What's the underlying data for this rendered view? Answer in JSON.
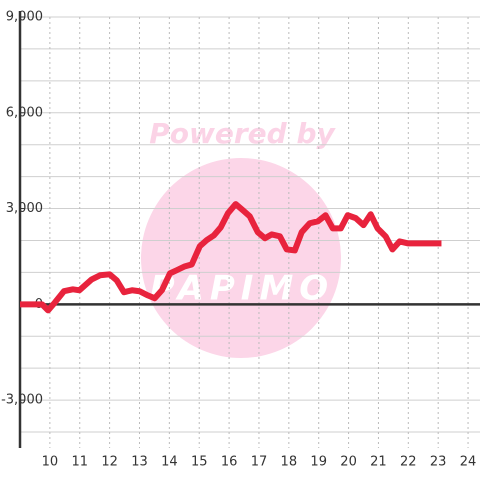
{
  "chart_data": {
    "type": "line",
    "watermark": "Powered by",
    "watermark_logo": "PAPIMO",
    "x": [
      9.0,
      9.74,
      9.94,
      10.17,
      10.47,
      10.77,
      10.99,
      11.4,
      11.68,
      12.0,
      12.24,
      12.48,
      12.75,
      13.0,
      13.28,
      13.51,
      13.75,
      14.02,
      14.25,
      14.52,
      14.75,
      15.02,
      15.25,
      15.49,
      15.72,
      15.96,
      16.22,
      16.46,
      16.69,
      16.96,
      17.2,
      17.43,
      17.7,
      17.93,
      18.2,
      18.43,
      18.7,
      18.97,
      19.23,
      19.47,
      19.74,
      19.97,
      20.24,
      20.5,
      20.74,
      20.97,
      21.24,
      21.47,
      21.71,
      21.98,
      23.11
    ],
    "series": [
      {
        "color": "#e8233d",
        "values": [
          0,
          0,
          -190,
          60,
          410,
          470,
          440,
          780,
          910,
          940,
          750,
          380,
          440,
          410,
          280,
          190,
          440,
          970,
          1070,
          1190,
          1250,
          1820,
          2010,
          2160,
          2410,
          2850,
          3140,
          2950,
          2760,
          2260,
          2070,
          2190,
          2130,
          1720,
          1690,
          2260,
          2540,
          2600,
          2790,
          2380,
          2380,
          2790,
          2700,
          2480,
          2820,
          2380,
          2130,
          1720,
          1970,
          1910,
          1910
        ]
      }
    ],
    "xlim": [
      9,
      24.4
    ],
    "xticks": [
      10,
      11,
      12,
      13,
      14,
      15,
      16,
      17,
      18,
      19,
      20,
      21,
      22,
      23,
      24
    ],
    "ylim": [
      -4500,
      9000
    ],
    "yticks": [
      {
        "value": -3000,
        "label": "-3,000"
      },
      0,
      {
        "value": 3000,
        "label": "3,000"
      },
      {
        "value": 6000,
        "label": "6,000"
      },
      {
        "value": 9000,
        "label": "9,000"
      }
    ],
    "ygrid": [
      -4000,
      -3000,
      -2000,
      -1000,
      1000,
      2000,
      3000,
      4000,
      5000,
      6000,
      7000,
      8000,
      9000
    ],
    "grid": true
  }
}
